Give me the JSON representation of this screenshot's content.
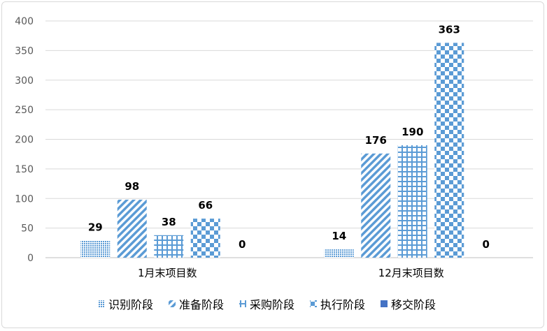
{
  "chart_data": {
    "type": "bar",
    "title": "",
    "xlabel": "",
    "ylabel": "",
    "categories": [
      "1月末项目数",
      "12月末项目数"
    ],
    "series": [
      {
        "name": "识别阶段",
        "values": [
          29,
          14
        ],
        "pattern": "dots"
      },
      {
        "name": "准备阶段",
        "values": [
          98,
          176
        ],
        "pattern": "diagonal"
      },
      {
        "name": "采购阶段",
        "values": [
          38,
          190
        ],
        "pattern": "grid"
      },
      {
        "name": "执行阶段",
        "values": [
          66,
          363
        ],
        "pattern": "checker"
      },
      {
        "name": "移交阶段",
        "values": [
          0,
          0
        ],
        "pattern": "solid"
      }
    ],
    "ylim": [
      0,
      400
    ],
    "yticks": [
      0,
      50,
      100,
      150,
      200,
      250,
      300,
      350,
      400
    ],
    "grid": true,
    "legend_position": "bottom",
    "color": "#5b9bd5"
  }
}
